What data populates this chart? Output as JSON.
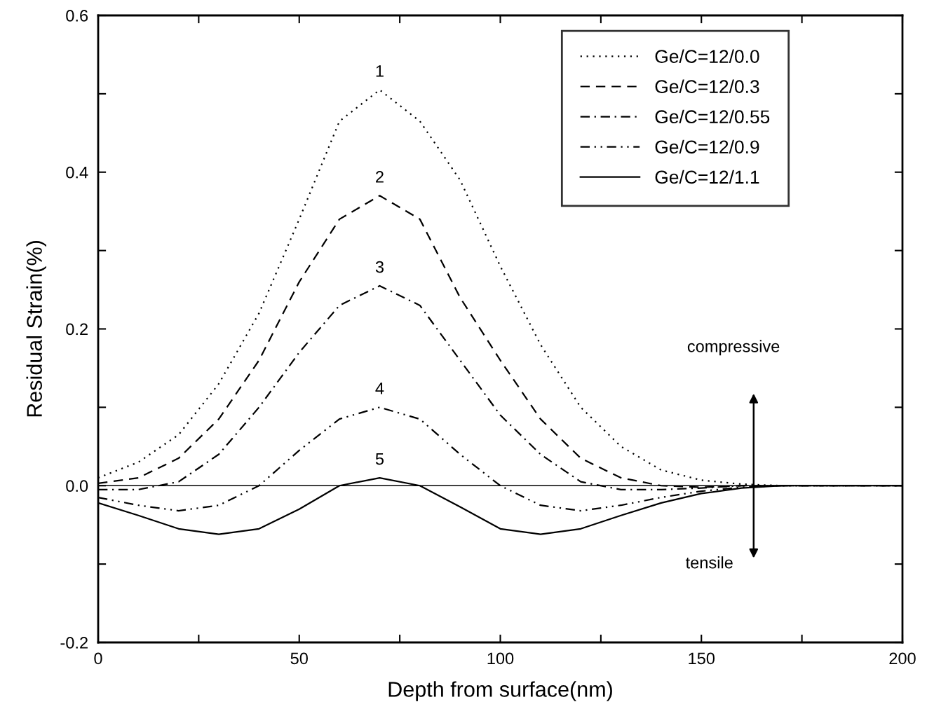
{
  "chart_data": {
    "type": "line",
    "xlabel": "Depth from surface(nm)",
    "ylabel": "Residual Strain(%)",
    "x": [
      0,
      10,
      20,
      30,
      40,
      50,
      60,
      70,
      80,
      90,
      100,
      110,
      120,
      130,
      140,
      150,
      160,
      170,
      180,
      190,
      200
    ],
    "series": [
      {
        "name": "Ge/C=12/0.0",
        "color": "#000000",
        "line_style": "dotted",
        "values": [
          0.01,
          0.03,
          0.065,
          0.13,
          0.22,
          0.34,
          0.465,
          0.505,
          0.465,
          0.39,
          0.28,
          0.18,
          0.1,
          0.05,
          0.02,
          0.007,
          0.002,
          0,
          0,
          0,
          0
        ]
      },
      {
        "name": "Ge/C=12/0.3",
        "color": "#000000",
        "line_style": "dashed",
        "values": [
          0.003,
          0.01,
          0.035,
          0.085,
          0.16,
          0.26,
          0.34,
          0.37,
          0.34,
          0.24,
          0.16,
          0.085,
          0.035,
          0.01,
          0,
          -0.002,
          0,
          0,
          0,
          0,
          0
        ]
      },
      {
        "name": "Ge/C=12/0.55",
        "color": "#000000",
        "line_style": "dashdot",
        "values": [
          -0.005,
          -0.005,
          0.005,
          0.04,
          0.1,
          0.17,
          0.23,
          0.255,
          0.23,
          0.16,
          0.09,
          0.04,
          0.005,
          -0.005,
          -0.005,
          -0.003,
          0,
          0,
          0,
          0,
          0
        ]
      },
      {
        "name": "Ge/C=12/0.9",
        "color": "#000000",
        "line_style": "dashdotdot",
        "values": [
          -0.015,
          -0.025,
          -0.032,
          -0.025,
          0,
          0.045,
          0.085,
          0.1,
          0.085,
          0.04,
          0,
          -0.025,
          -0.032,
          -0.025,
          -0.015,
          -0.007,
          -0.002,
          0,
          0,
          0,
          0
        ]
      },
      {
        "name": "Ge/C=12/1.1",
        "color": "#000000",
        "line_style": "solid",
        "values": [
          -0.022,
          -0.038,
          -0.055,
          -0.062,
          -0.055,
          -0.03,
          0,
          0.01,
          0,
          -0.027,
          -0.055,
          -0.062,
          -0.055,
          -0.038,
          -0.022,
          -0.01,
          -0.003,
          0,
          0,
          0,
          0
        ]
      }
    ],
    "annotations": [
      "1",
      "2",
      "3",
      "4",
      "5",
      "compressive",
      "tensile"
    ],
    "ref_lines": [
      {
        "axis": "y",
        "value": 0,
        "color": "#000000",
        "line_style": "solid"
      }
    ],
    "xlim": [
      0,
      200
    ],
    "ylim": [
      -0.2,
      0.6
    ],
    "xticks": [
      0,
      {
        "value": 25,
        "label": null
      },
      50,
      {
        "value": 75,
        "label": null
      },
      100,
      {
        "value": 125,
        "label": null
      },
      150,
      {
        "value": 175,
        "label": null
      },
      200
    ],
    "yticks": [
      {
        "value": -0.2,
        "label": "-0.2"
      },
      {
        "value": -0.1,
        "label": null
      },
      {
        "value": 0,
        "label": "0.0"
      },
      {
        "value": 0.1,
        "label": null
      },
      {
        "value": 0.2,
        "label": "0.2"
      },
      {
        "value": 0.3,
        "label": null
      },
      {
        "value": 0.4,
        "label": "0.4"
      },
      {
        "value": 0.5,
        "label": null
      },
      {
        "value": 0.6,
        "label": "0.6"
      }
    ],
    "grid": false,
    "legend": "top right"
  }
}
